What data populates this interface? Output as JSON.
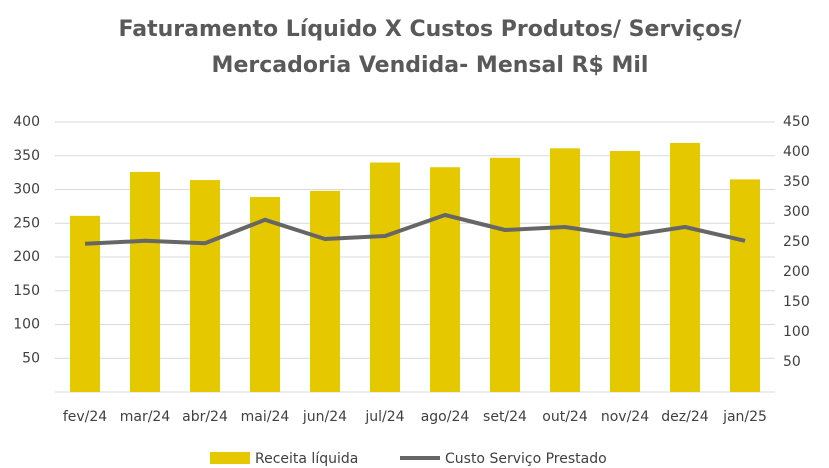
{
  "chart_data": {
    "type": "bar_line",
    "title": "Faturamento Líquido X Custos Produtos/ Serviços/",
    "subtitle": "Mercadoria Vendida- Mensal R$ Mil",
    "categories": [
      "fev/24",
      "mar/24",
      "abr/24",
      "mai/24",
      "jun/24",
      "jul/24",
      "ago/24",
      "set/24",
      "out/24",
      "nov/24",
      "dez/24",
      "jan/25"
    ],
    "series": [
      {
        "name": "Receita líquida",
        "color": "#e6c800",
        "type": "bar",
        "values": [
          261,
          326,
          314,
          289,
          298,
          340,
          333,
          347,
          361,
          357,
          369,
          315
        ]
      },
      {
        "name": "Custo Serviço Prestado",
        "color": "#666666",
        "type": "line",
        "axis": "y2",
        "values": [
          247,
          252,
          248,
          287,
          255,
          260,
          295,
          270,
          275,
          260,
          275,
          252
        ]
      }
    ],
    "ylim": [
      0,
      400
    ],
    "yticks": [
      50,
      100,
      150,
      200,
      250,
      300,
      350,
      400
    ],
    "y2lim": [
      0,
      450
    ],
    "y2ticks": [
      50,
      100,
      150,
      200,
      250,
      300,
      350,
      400,
      450
    ],
    "grid": true,
    "legend": "bottom"
  }
}
